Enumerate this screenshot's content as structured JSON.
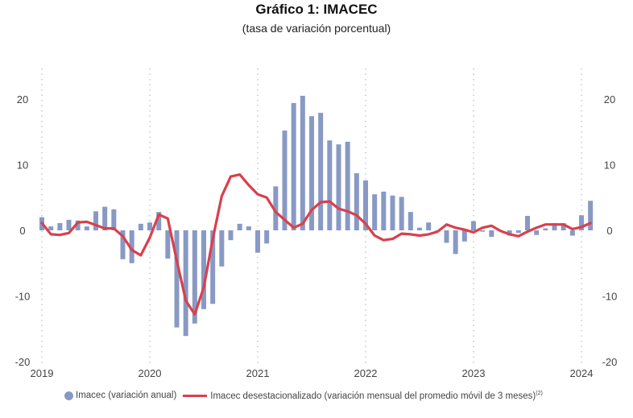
{
  "chart_data": {
    "type": "bar+line",
    "title": "Gráfico 1:  IMACEC",
    "subtitle": "(tasa de variación porcentual)",
    "x_start": "2019-01",
    "frequency": "monthly",
    "x_tick_labels": [
      "2019",
      "2020",
      "2021",
      "2022",
      "2023",
      "2024"
    ],
    "y_ticks": [
      -20,
      -10,
      0,
      10,
      20
    ],
    "ylim": [
      -20,
      20
    ],
    "grid": "vertical dotted at year starts",
    "legend_placement": "bottom",
    "series": [
      {
        "name": "Imacec (variación anual)",
        "type": "bar",
        "color": "#8899c4",
        "values": [
          2.0,
          0.6,
          1.1,
          1.6,
          1.5,
          0.6,
          2.9,
          3.6,
          3.2,
          -4.4,
          -5.0,
          1.0,
          1.2,
          2.8,
          -4.3,
          -14.8,
          -16.1,
          -14.2,
          -12.0,
          -11.2,
          -5.5,
          -1.5,
          1.0,
          0.6,
          -3.4,
          -2.0,
          6.7,
          15.2,
          19.4,
          20.5,
          17.4,
          17.9,
          13.7,
          13.1,
          13.5,
          8.7,
          7.6,
          5.5,
          5.9,
          5.3,
          5.1,
          2.8,
          0.4,
          1.2,
          -0.1,
          -1.9,
          -3.6,
          -1.7,
          1.4,
          -0.2,
          -1.0,
          -0.1,
          -0.8,
          -0.4,
          2.2,
          -0.7,
          0.3,
          1.1,
          1.1,
          -0.8,
          2.3,
          4.5
        ]
      },
      {
        "name": "Imacec desestacionalizado (variación mensual del promedio móvil de 3 meses)",
        "name_sup": "(2)",
        "type": "line",
        "color": "#d9404c",
        "values": [
          1.1,
          -0.6,
          -0.7,
          -0.4,
          1.2,
          1.3,
          0.8,
          0.3,
          0.3,
          -0.9,
          -3.0,
          -3.8,
          -1.1,
          2.4,
          1.8,
          -4.6,
          -10.7,
          -12.8,
          -8.7,
          -1.3,
          5.2,
          8.2,
          8.5,
          6.9,
          5.5,
          5.0,
          2.8,
          1.6,
          0.4,
          1.0,
          3.1,
          4.3,
          4.4,
          3.3,
          2.9,
          2.3,
          1.0,
          -0.8,
          -1.5,
          -1.3,
          -0.5,
          -0.6,
          -0.8,
          -0.6,
          -0.2,
          0.9,
          0.4,
          0.1,
          -0.3,
          0.4,
          0.7,
          -0.1,
          -0.6,
          -0.9,
          -0.2,
          0.4,
          0.9,
          0.9,
          0.9,
          0.2,
          0.5,
          1.1
        ]
      }
    ]
  }
}
